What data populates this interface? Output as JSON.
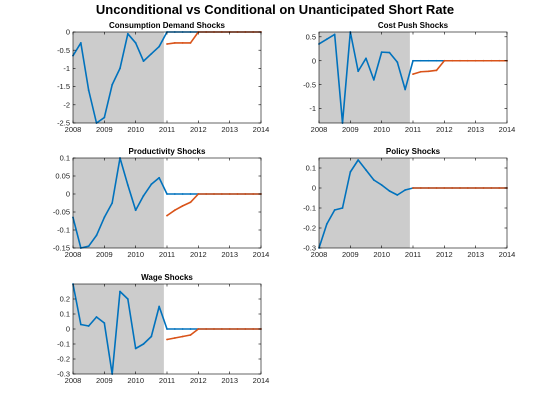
{
  "figure": {
    "title": "Unconditional vs Conditional on Unanticipated Short Rate"
  },
  "colors": {
    "unconditional": "#0072BD",
    "conditional": "#D95319",
    "shade": "#cccccc",
    "axis": "#000000"
  },
  "chart_data": [
    {
      "type": "line",
      "title": "Consumption Demand Shocks",
      "xlim": [
        2008,
        2014
      ],
      "ylim": [
        -2.5,
        0
      ],
      "xticks": [
        "2008",
        "2009",
        "2010",
        "2011",
        "2012",
        "2013",
        "2014"
      ],
      "yticks": [
        "0",
        "-0.5",
        "-1",
        "-1.5",
        "-2",
        "-2.5"
      ],
      "shade": [
        2008,
        2010.9
      ],
      "series": [
        {
          "x": [
            2008,
            2008.25,
            2008.5,
            2008.75,
            2009,
            2009.25,
            2009.5,
            2009.75,
            2010,
            2010.25,
            2010.5,
            2010.75,
            2011,
            2011.25,
            2011.5,
            2011.75,
            2012,
            2012.25,
            2012.5,
            2012.75,
            2013,
            2013.25,
            2013.5,
            2013.75,
            2014
          ],
          "y": [
            -0.65,
            -0.3,
            -1.6,
            -2.5,
            -2.35,
            -1.45,
            -1.0,
            -0.05,
            -0.3,
            -0.8,
            -0.6,
            -0.4,
            0,
            0,
            0,
            0,
            0,
            0,
            0,
            0,
            0,
            0,
            0,
            0,
            0
          ]
        },
        {
          "x": [
            2011,
            2011.25,
            2011.5,
            2011.75,
            2012,
            2012.25,
            2012.5,
            2012.75,
            2013,
            2013.25,
            2013.5,
            2013.75,
            2014
          ],
          "y": [
            -0.33,
            -0.3,
            -0.3,
            -0.3,
            0,
            0,
            0,
            0,
            0,
            0,
            0,
            0,
            0
          ]
        }
      ]
    },
    {
      "type": "line",
      "title": "Cost Push Shocks",
      "xlim": [
        2008,
        2014
      ],
      "ylim": [
        -1.3,
        0.6
      ],
      "xticks": [
        "2008",
        "2009",
        "2010",
        "2011",
        "2012",
        "2013",
        "2014"
      ],
      "yticks": [
        "0.5",
        "0",
        "-0.5",
        "-1"
      ],
      "shade": [
        2008,
        2010.9
      ],
      "series": [
        {
          "x": [
            2008,
            2008.25,
            2008.5,
            2008.75,
            2009,
            2009.25,
            2009.5,
            2009.75,
            2010,
            2010.25,
            2010.5,
            2010.75,
            2011,
            2011.25,
            2011.5,
            2011.75,
            2012,
            2012.25,
            2012.5,
            2012.75,
            2013,
            2013.25,
            2013.5,
            2013.75,
            2014
          ],
          "y": [
            0.35,
            0.45,
            0.55,
            -1.3,
            0.6,
            -0.22,
            0.05,
            -0.4,
            0.18,
            0.17,
            -0.03,
            -0.6,
            0,
            0,
            0,
            0,
            0,
            0,
            0,
            0,
            0,
            0,
            0,
            0,
            0
          ]
        },
        {
          "x": [
            2011,
            2011.25,
            2011.5,
            2011.75,
            2012,
            2012.25,
            2012.5,
            2012.75,
            2013,
            2013.25,
            2013.5,
            2013.75,
            2014
          ],
          "y": [
            -0.28,
            -0.23,
            -0.22,
            -0.2,
            0,
            0,
            0,
            0,
            0,
            0,
            0,
            0,
            0
          ]
        }
      ]
    },
    {
      "type": "line",
      "title": "Productivity Shocks",
      "xlim": [
        2008,
        2014
      ],
      "ylim": [
        -0.15,
        0.1
      ],
      "xticks": [
        "2008",
        "2009",
        "2010",
        "2011",
        "2012",
        "2013",
        "2014"
      ],
      "yticks": [
        "0.1",
        "0.05",
        "0",
        "-0.05",
        "-0.1",
        "-0.15"
      ],
      "shade": [
        2008,
        2010.9
      ],
      "series": [
        {
          "x": [
            2008,
            2008.25,
            2008.5,
            2008.75,
            2009,
            2009.25,
            2009.5,
            2009.75,
            2010,
            2010.25,
            2010.5,
            2010.75,
            2011,
            2011.25,
            2011.5,
            2011.75,
            2012,
            2012.25,
            2012.5,
            2012.75,
            2013,
            2013.25,
            2013.5,
            2013.75,
            2014
          ],
          "y": [
            -0.065,
            -0.15,
            -0.145,
            -0.115,
            -0.065,
            -0.025,
            0.1,
            0.025,
            -0.045,
            -0.005,
            0.027,
            0.045,
            0,
            0,
            0,
            0,
            0,
            0,
            0,
            0,
            0,
            0,
            0,
            0,
            0
          ]
        },
        {
          "x": [
            2011,
            2011.25,
            2011.5,
            2011.75,
            2012,
            2012.25,
            2012.5,
            2012.75,
            2013,
            2013.25,
            2013.5,
            2013.75,
            2014
          ],
          "y": [
            -0.06,
            -0.045,
            -0.033,
            -0.023,
            0,
            0,
            0,
            0,
            0,
            0,
            0,
            0,
            0
          ]
        }
      ]
    },
    {
      "type": "line",
      "title": "Policy Shocks",
      "xlim": [
        2008,
        2014
      ],
      "ylim": [
        -0.3,
        0.15
      ],
      "xticks": [
        "2008",
        "2009",
        "2010",
        "2011",
        "2012",
        "2013",
        "2014"
      ],
      "yticks": [
        "0.1",
        "0",
        "-0.1",
        "-0.2",
        "-0.3"
      ],
      "shade": [
        2008,
        2010.9
      ],
      "series": [
        {
          "x": [
            2008,
            2008.25,
            2008.5,
            2008.75,
            2009,
            2009.25,
            2009.5,
            2009.75,
            2010,
            2010.25,
            2010.5,
            2010.75,
            2011,
            2011.25,
            2011.5,
            2011.75,
            2012,
            2012.25,
            2012.5,
            2012.75,
            2013,
            2013.25,
            2013.5,
            2013.75,
            2014
          ],
          "y": [
            -0.3,
            -0.18,
            -0.11,
            -0.1,
            0.08,
            0.14,
            0.09,
            0.04,
            0.015,
            -0.015,
            -0.035,
            -0.01,
            0,
            0,
            0,
            0,
            0,
            0,
            0,
            0,
            0,
            0,
            0,
            0,
            0
          ]
        },
        {
          "x": [
            2011,
            2011.25,
            2011.5,
            2011.75,
            2012,
            2012.25,
            2012.5,
            2012.75,
            2013,
            2013.25,
            2013.5,
            2013.75,
            2014
          ],
          "y": [
            0,
            0,
            0,
            0,
            0,
            0,
            0,
            0,
            0,
            0,
            0,
            0,
            0
          ]
        }
      ]
    },
    {
      "type": "line",
      "title": "Wage Shocks",
      "xlim": [
        2008,
        2014
      ],
      "ylim": [
        -0.3,
        0.3
      ],
      "xticks": [
        "2008",
        "2009",
        "2010",
        "2011",
        "2012",
        "2013",
        "2014"
      ],
      "yticks": [
        "0.2",
        "0.1",
        "0",
        "-0.1",
        "-0.2",
        "-0.3"
      ],
      "shade": [
        2008,
        2010.9
      ],
      "series": [
        {
          "x": [
            2008,
            2008.25,
            2008.5,
            2008.75,
            2009,
            2009.25,
            2009.5,
            2009.75,
            2010,
            2010.25,
            2010.5,
            2010.75,
            2011,
            2011.25,
            2011.5,
            2011.75,
            2012,
            2012.25,
            2012.5,
            2012.75,
            2013,
            2013.25,
            2013.5,
            2013.75,
            2014
          ],
          "y": [
            0.3,
            0.03,
            0.02,
            0.08,
            0.04,
            -0.3,
            0.25,
            0.2,
            -0.13,
            -0.1,
            -0.05,
            0.15,
            0,
            0,
            0,
            0,
            0,
            0,
            0,
            0,
            0,
            0,
            0,
            0,
            0
          ]
        },
        {
          "x": [
            2011,
            2011.25,
            2011.5,
            2011.75,
            2012,
            2012.25,
            2012.5,
            2012.75,
            2013,
            2013.25,
            2013.5,
            2013.75,
            2014
          ],
          "y": [
            -0.07,
            -0.06,
            -0.05,
            -0.04,
            0,
            0,
            0,
            0,
            0,
            0,
            0,
            0,
            0
          ]
        }
      ]
    }
  ]
}
